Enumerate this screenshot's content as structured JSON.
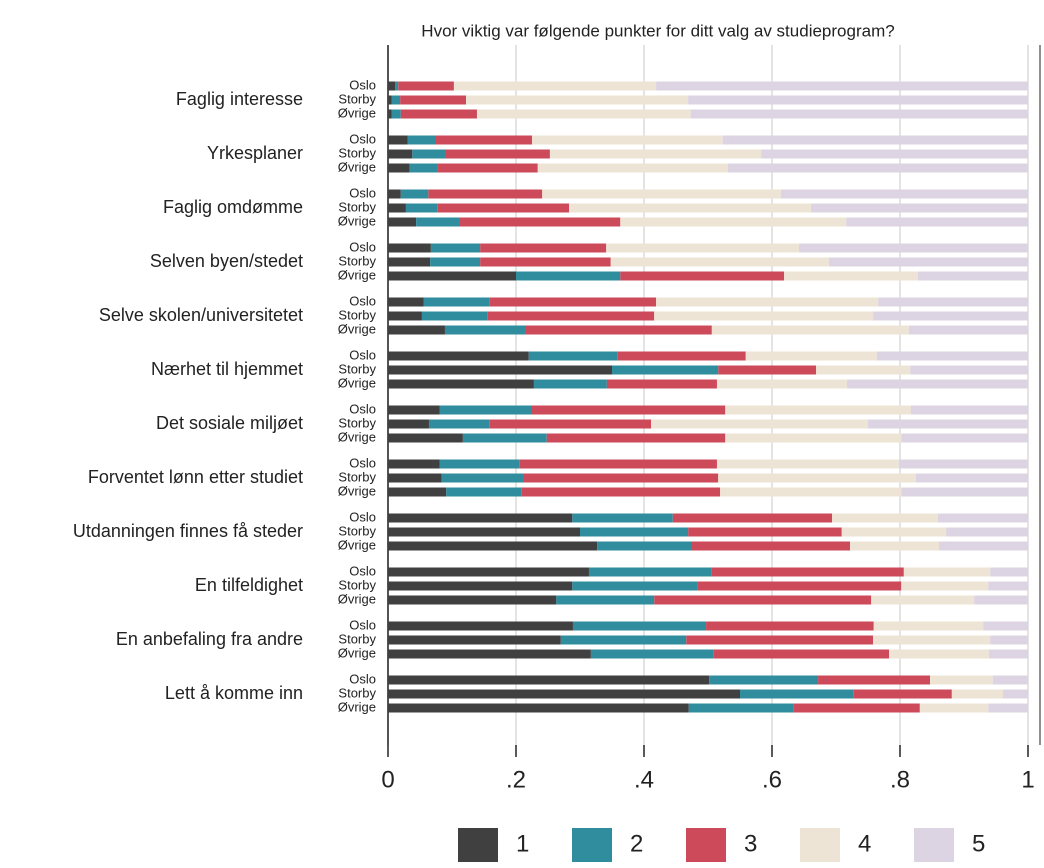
{
  "chart_data": {
    "type": "stacked-bar-h",
    "title": "Hvor viktig var følgende punkter for ditt valg av studieprogram?",
    "categories": [
      "Faglig interesse",
      "Yrkesplaner",
      "Faglig omdømme",
      "Selven byen/stedet",
      "Selve skolen/universitetet",
      "Nærhet til hjemmet",
      "Det sosiale miljøet",
      "Forventet lønn etter studiet",
      "Utdanningen finnes få steder",
      "En tilfeldighet",
      "En anbefaling fra andre",
      "Lett å komme inn"
    ],
    "subgroups": [
      "Oslo",
      "Storby",
      "Øvrige"
    ],
    "xlim": [
      0,
      1
    ],
    "xticks": [
      0,
      {
        "value": 0.2,
        "label": ".2"
      },
      {
        "value": 0.4,
        "label": ".4"
      },
      {
        "value": 0.6,
        "label": ".6"
      },
      {
        "value": 0.8,
        "label": ".8"
      },
      1
    ],
    "grid": true,
    "legend": "bottom",
    "series": [
      {
        "name": "1",
        "color": "#404040",
        "values": [
          [
            0.011,
            0.006,
            0.006
          ],
          [
            0.031,
            0.038,
            0.034
          ],
          [
            0.02,
            0.028,
            0.044
          ],
          [
            0.067,
            0.066,
            0.2
          ],
          [
            0.056,
            0.053,
            0.089
          ],
          [
            0.22,
            0.35,
            0.228
          ],
          [
            0.081,
            0.064,
            0.117
          ],
          [
            0.081,
            0.084,
            0.091
          ],
          [
            0.288,
            0.3,
            0.327
          ],
          [
            0.314,
            0.288,
            0.263
          ],
          [
            0.289,
            0.27,
            0.317
          ],
          [
            0.502,
            0.55,
            0.47
          ]
        ]
      },
      {
        "name": "2",
        "color": "#2f8d9e",
        "values": [
          [
            0.005,
            0.013,
            0.014
          ],
          [
            0.044,
            0.051,
            0.044
          ],
          [
            0.043,
            0.049,
            0.067
          ],
          [
            0.077,
            0.078,
            0.163
          ],
          [
            0.103,
            0.102,
            0.125
          ],
          [
            0.139,
            0.166,
            0.114
          ],
          [
            0.144,
            0.095,
            0.131
          ],
          [
            0.124,
            0.127,
            0.118
          ],
          [
            0.157,
            0.169,
            0.148
          ],
          [
            0.192,
            0.195,
            0.153
          ],
          [
            0.208,
            0.196,
            0.192
          ],
          [
            0.17,
            0.177,
            0.163
          ]
        ]
      },
      {
        "name": "3",
        "color": "#cc4a5a",
        "values": [
          [
            0.087,
            0.103,
            0.119
          ],
          [
            0.15,
            0.164,
            0.156
          ],
          [
            0.178,
            0.206,
            0.252
          ],
          [
            0.197,
            0.204,
            0.256
          ],
          [
            0.26,
            0.261,
            0.292
          ],
          [
            0.2,
            0.153,
            0.172
          ],
          [
            0.302,
            0.252,
            0.279
          ],
          [
            0.309,
            0.305,
            0.31
          ],
          [
            0.249,
            0.24,
            0.247
          ],
          [
            0.3,
            0.319,
            0.339
          ],
          [
            0.262,
            0.292,
            0.274
          ],
          [
            0.175,
            0.154,
            0.198
          ]
        ]
      },
      {
        "name": "4",
        "color": "#ede4d6",
        "values": [
          [
            0.316,
            0.347,
            0.334
          ],
          [
            0.298,
            0.33,
            0.297
          ],
          [
            0.373,
            0.378,
            0.353
          ],
          [
            0.301,
            0.341,
            0.209
          ],
          [
            0.347,
            0.342,
            0.308
          ],
          [
            0.205,
            0.147,
            0.203
          ],
          [
            0.29,
            0.339,
            0.275
          ],
          [
            0.284,
            0.309,
            0.283
          ],
          [
            0.165,
            0.163,
            0.139
          ],
          [
            0.135,
            0.136,
            0.161
          ],
          [
            0.171,
            0.183,
            0.156
          ],
          [
            0.098,
            0.08,
            0.107
          ]
        ]
      },
      {
        "name": "5",
        "color": "#dcd4e2",
        "values": [
          [
            0.581,
            0.531,
            0.527
          ],
          [
            0.477,
            0.417,
            0.469
          ],
          [
            0.386,
            0.339,
            0.284
          ],
          [
            0.358,
            0.311,
            0.172
          ],
          [
            0.234,
            0.242,
            0.186
          ],
          [
            0.236,
            0.184,
            0.283
          ],
          [
            0.183,
            0.25,
            0.198
          ],
          [
            0.202,
            0.175,
            0.198
          ],
          [
            0.141,
            0.128,
            0.139
          ],
          [
            0.059,
            0.062,
            0.084
          ],
          [
            0.07,
            0.059,
            0.061
          ],
          [
            0.055,
            0.039,
            0.062
          ]
        ]
      }
    ]
  }
}
